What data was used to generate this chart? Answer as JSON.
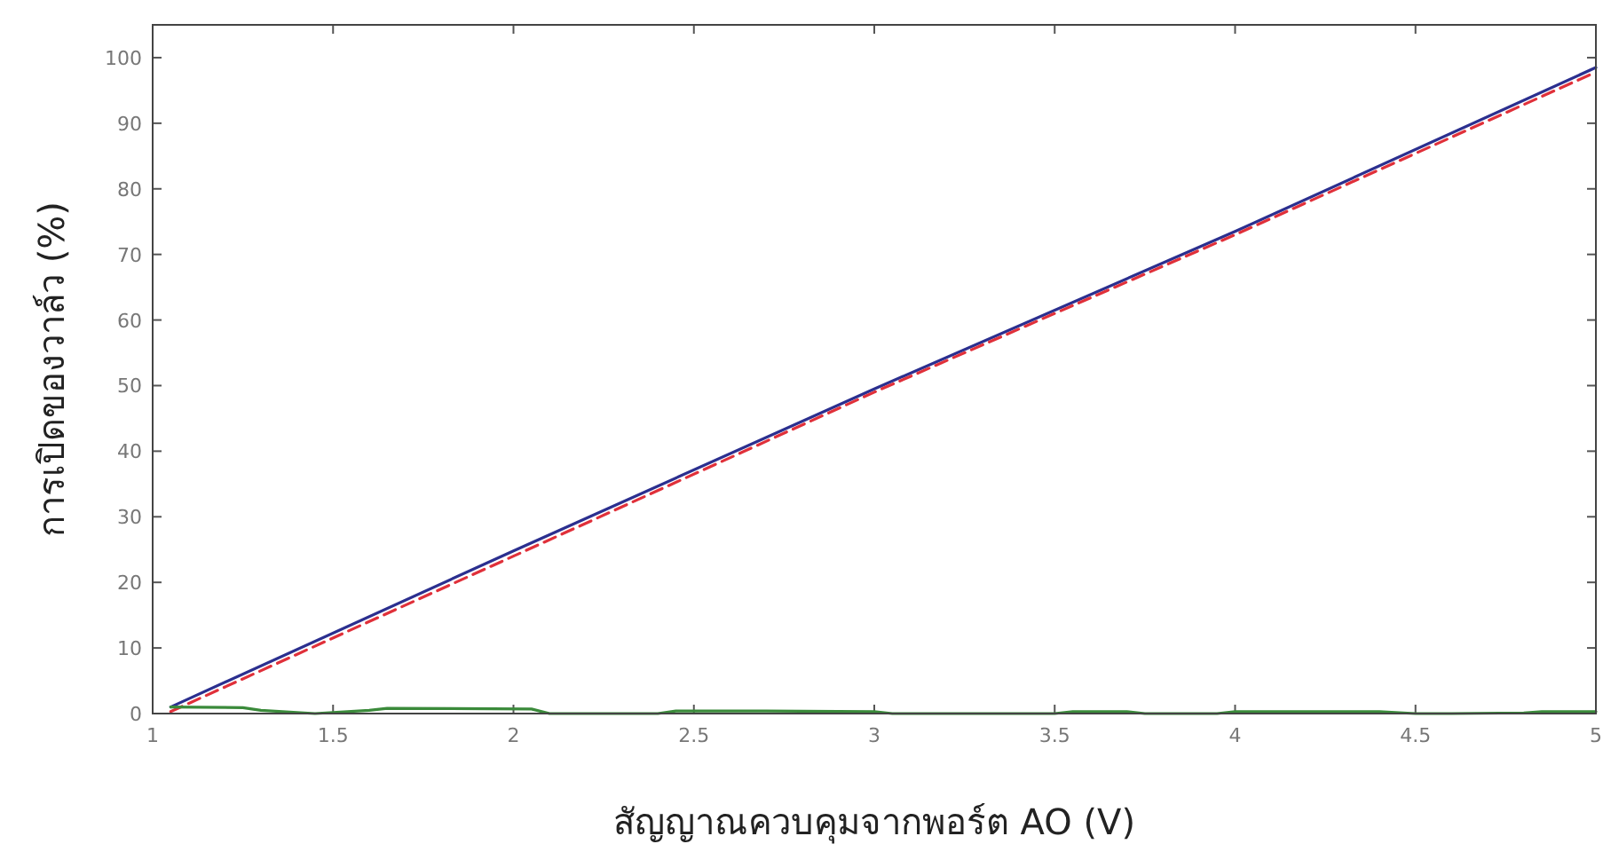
{
  "chart_data": {
    "type": "line",
    "xlabel": "สัญญาณควบคุมจากพอร์ต AO (V)",
    "ylabel": "การเปิดของวาล์ว (%)",
    "xlim": [
      1,
      5
    ],
    "ylim": [
      0,
      105
    ],
    "xticks": [
      1,
      {
        "value": 1.5,
        "label": "1.5"
      },
      2,
      {
        "value": 2.5,
        "label": "2.5"
      },
      3,
      {
        "value": 3.5,
        "label": "3.5"
      },
      4,
      {
        "value": 4.5,
        "label": "4.5"
      },
      5
    ],
    "yticks": [
      0,
      10,
      20,
      30,
      40,
      50,
      60,
      70,
      80,
      90,
      100
    ],
    "grid": false,
    "series": [
      {
        "color": "#2b2f8f",
        "line_style": "solid",
        "x": [
          1.05,
          2,
          3,
          4,
          5
        ],
        "values": [
          1,
          24.8,
          49.5,
          73.5,
          98.5
        ]
      },
      {
        "color": "#e0303a",
        "line_style": "dashed",
        "x": [
          1.05,
          2,
          3,
          4,
          5
        ],
        "values": [
          0.3,
          24,
          49,
          73,
          97.8
        ]
      },
      {
        "color": "#3a8a3a",
        "line_style": "solid",
        "x": [
          1.05,
          1.25,
          1.3,
          1.45,
          1.6,
          1.65,
          2.05,
          2.1,
          2.4,
          2.45,
          2.7,
          3.0,
          3.05,
          3.5,
          3.55,
          3.7,
          3.75,
          3.95,
          4.0,
          4.4,
          4.5,
          4.6,
          4.8,
          4.85,
          5
        ],
        "values": [
          1,
          0.9,
          0.5,
          0,
          0.5,
          0.8,
          0.7,
          0,
          0,
          0.4,
          0.4,
          0.3,
          0,
          0,
          0.3,
          0.3,
          0,
          0,
          0.3,
          0.3,
          0,
          0,
          0.1,
          0.3,
          0.3
        ]
      }
    ]
  }
}
